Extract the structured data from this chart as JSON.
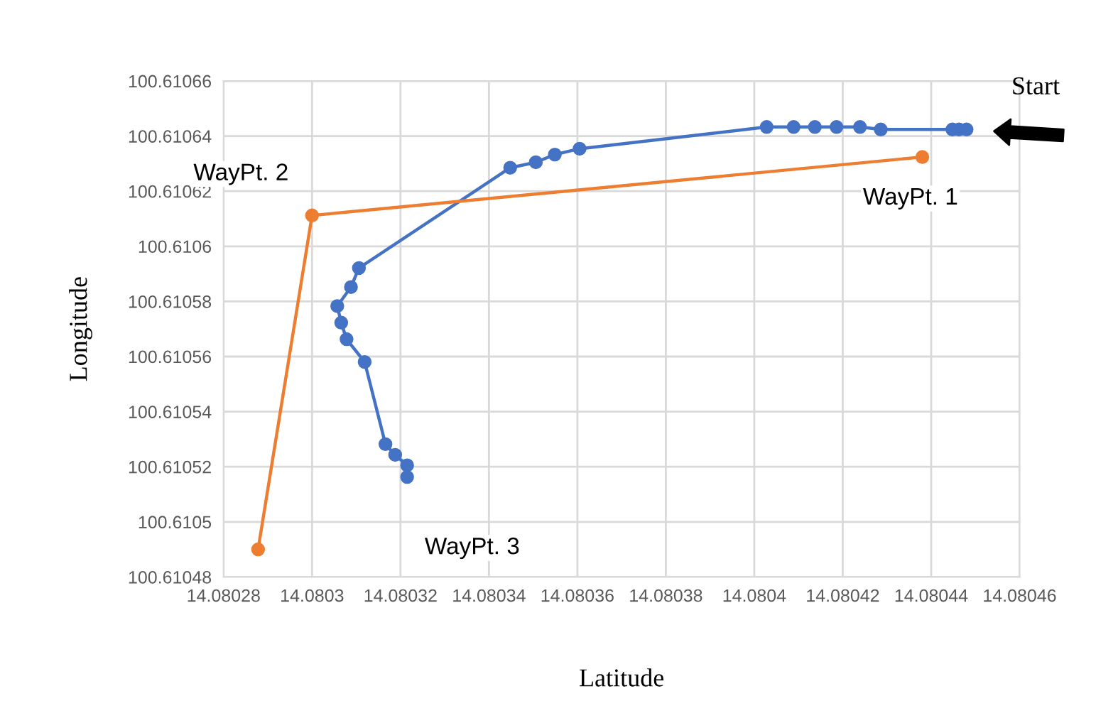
{
  "chart_data": {
    "type": "line",
    "xlabel": "Latitude",
    "ylabel": "Longitude",
    "series": [
      {
        "color": "#4472c4",
        "x": [
          14.080448,
          14.0804463,
          14.0804448,
          14.0804286,
          14.0804239,
          14.0804186,
          14.0804137,
          14.0804089,
          14.0804028,
          14.0803605,
          14.0803549,
          14.0803506,
          14.0803448,
          14.0803106,
          14.0803088,
          14.0803057,
          14.0803066,
          14.0803078,
          14.0803119,
          14.0803166,
          14.0803188,
          14.0803215,
          14.0803215
        ],
        "values": [
          100.6106424,
          100.6106424,
          100.6106424,
          100.6106424,
          100.6106433,
          100.6106433,
          100.6106433,
          100.6106433,
          100.6106433,
          100.6106354,
          100.6106333,
          100.6106305,
          100.6106285,
          100.6105921,
          100.6105852,
          100.6105783,
          100.6105723,
          100.6105663,
          100.610558,
          100.6105282,
          100.6105243,
          100.6105205,
          100.6105163
        ]
      },
      {
        "color": "#ed7d31",
        "x": [
          14.080438,
          14.0803,
          14.0802878
        ],
        "values": [
          100.6106324,
          100.6106112,
          100.61049
        ]
      }
    ],
    "annotations": [
      {
        "text": "Start",
        "x": 14.080448,
        "y": 100.6106424
      },
      {
        "text": "WayPt. 1",
        "x": 14.080438,
        "y": 100.6106324
      },
      {
        "text": "WayPt. 2",
        "x": 14.0803,
        "y": 100.6106112
      },
      {
        "text": "WayPt. 3",
        "x": 14.0803215,
        "y": 100.6105163
      }
    ],
    "xlim": [
      14.08028,
      14.08046
    ],
    "ylim": [
      100.61048,
      100.61066
    ],
    "xticks": [
      14.08028,
      14.0803,
      14.08032,
      14.08034,
      14.08036,
      14.08038,
      14.0804,
      14.08042,
      14.08044,
      14.08046
    ],
    "yticks": [
      100.61048,
      100.6105,
      100.61052,
      100.61054,
      100.61056,
      100.61058,
      100.6106,
      100.61062,
      100.61064,
      100.61066
    ],
    "grid": true,
    "legend": false,
    "marker": "circle",
    "line_style": "solid"
  }
}
